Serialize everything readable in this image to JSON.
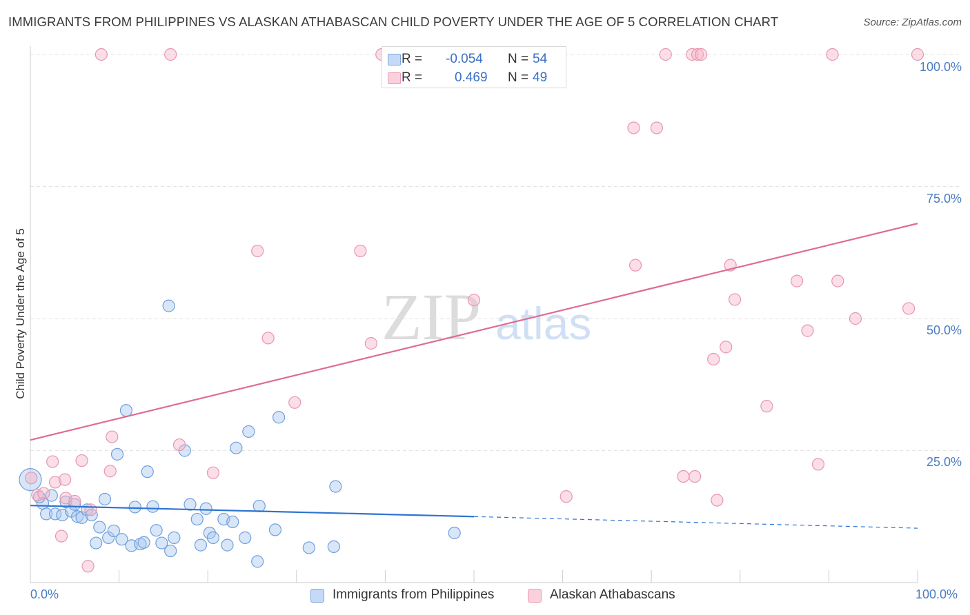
{
  "title": "IMMIGRANTS FROM PHILIPPINES VS ALASKAN ATHABASCAN CHILD POVERTY UNDER THE AGE OF 5 CORRELATION CHART",
  "source": "Source: ZipAtlas.com",
  "watermark": {
    "zip": "ZIP",
    "atlas": "atlas"
  },
  "legend": {
    "rows": [
      {
        "r_label": "R =",
        "r_value": "-0.054",
        "n_label": "N =",
        "n_value": "54",
        "color": "#a8c8f0"
      },
      {
        "r_label": "R =",
        "r_value": "0.469",
        "n_label": "N =",
        "n_value": "49",
        "color": "#f6b6c9"
      }
    ]
  },
  "chart_data": {
    "type": "scatter",
    "title": "IMMIGRANTS FROM PHILIPPINES VS ALASKAN ATHABASCAN CHILD POVERTY UNDER THE AGE OF 5 CORRELATION CHART",
    "xlabel": "",
    "ylabel": "Child Poverty Under the Age of 5",
    "xlim": [
      0,
      100
    ],
    "ylim": [
      0,
      100
    ],
    "x_tick_labels": [
      "0.0%",
      "100.0%"
    ],
    "y_tick_labels": [
      "25.0%",
      "50.0%",
      "75.0%",
      "100.0%"
    ],
    "y_ticks": [
      25,
      50,
      75,
      100
    ],
    "grid": true,
    "legend_position": "bottom-center",
    "series": [
      {
        "name": "Immigrants from Philippines",
        "color": "#a8c8f0",
        "stroke": "#6f9fdc",
        "trend": {
          "x": [
            0,
            50
          ],
          "y": [
            14.6,
            12.5
          ],
          "dashed_to": [
            100,
            10.3
          ],
          "color": "#2e74d0"
        },
        "points": [
          [
            0.0,
            19.5
          ],
          [
            1.4,
            15.0
          ],
          [
            1.8,
            13.0
          ],
          [
            2.4,
            16.5
          ],
          [
            2.8,
            13.0
          ],
          [
            3.6,
            12.8
          ],
          [
            4.0,
            15.3
          ],
          [
            4.6,
            13.5
          ],
          [
            5.0,
            14.8
          ],
          [
            5.3,
            12.5
          ],
          [
            5.8,
            12.3
          ],
          [
            6.4,
            13.8
          ],
          [
            6.9,
            12.8
          ],
          [
            7.4,
            7.5
          ],
          [
            7.8,
            10.5
          ],
          [
            8.4,
            15.8
          ],
          [
            8.8,
            8.5
          ],
          [
            9.4,
            9.8
          ],
          [
            9.8,
            24.3
          ],
          [
            10.3,
            8.2
          ],
          [
            10.8,
            32.6
          ],
          [
            11.4,
            7.0
          ],
          [
            11.8,
            14.3
          ],
          [
            12.4,
            7.3
          ],
          [
            12.8,
            7.6
          ],
          [
            13.2,
            21.0
          ],
          [
            13.8,
            14.4
          ],
          [
            14.2,
            9.9
          ],
          [
            14.8,
            7.5
          ],
          [
            15.6,
            52.4
          ],
          [
            15.8,
            6.0
          ],
          [
            16.2,
            8.5
          ],
          [
            17.4,
            25.0
          ],
          [
            18.0,
            14.8
          ],
          [
            18.8,
            12.0
          ],
          [
            19.2,
            7.1
          ],
          [
            19.8,
            14.0
          ],
          [
            20.2,
            9.4
          ],
          [
            20.6,
            8.5
          ],
          [
            21.8,
            12.0
          ],
          [
            22.2,
            7.1
          ],
          [
            22.8,
            11.5
          ],
          [
            23.2,
            25.5
          ],
          [
            24.2,
            8.5
          ],
          [
            24.6,
            28.6
          ],
          [
            25.6,
            4.0
          ],
          [
            25.8,
            14.5
          ],
          [
            27.6,
            10.0
          ],
          [
            28.0,
            31.3
          ],
          [
            31.4,
            6.6
          ],
          [
            34.2,
            6.8
          ],
          [
            34.4,
            18.2
          ],
          [
            47.8,
            9.4
          ],
          [
            1.0,
            16.2
          ]
        ]
      },
      {
        "name": "Alaskan Athabascans",
        "color": "#f6b6c9",
        "stroke": "#e896b0",
        "trend": {
          "x": [
            0,
            100
          ],
          "y": [
            27.0,
            68.0
          ],
          "color": "#e06a95"
        },
        "points": [
          [
            0.1,
            19.8
          ],
          [
            0.8,
            16.6
          ],
          [
            1.5,
            16.9
          ],
          [
            2.5,
            22.9
          ],
          [
            2.8,
            19.0
          ],
          [
            3.5,
            8.8
          ],
          [
            3.9,
            19.5
          ],
          [
            4.0,
            16.0
          ],
          [
            5.0,
            15.4
          ],
          [
            5.8,
            23.1
          ],
          [
            6.5,
            3.1
          ],
          [
            6.8,
            13.8
          ],
          [
            8.0,
            100.0
          ],
          [
            9.0,
            21.1
          ],
          [
            9.2,
            27.6
          ],
          [
            15.8,
            100.0
          ],
          [
            16.8,
            26.1
          ],
          [
            20.6,
            20.8
          ],
          [
            25.6,
            62.8
          ],
          [
            26.8,
            46.3
          ],
          [
            29.8,
            34.1
          ],
          [
            37.2,
            62.8
          ],
          [
            38.4,
            45.3
          ],
          [
            39.6,
            100.0
          ],
          [
            50.0,
            53.5
          ],
          [
            60.4,
            16.3
          ],
          [
            68.0,
            86.1
          ],
          [
            68.2,
            60.1
          ],
          [
            70.6,
            86.1
          ],
          [
            71.6,
            100.0
          ],
          [
            73.6,
            20.1
          ],
          [
            74.6,
            100.0
          ],
          [
            74.9,
            20.1
          ],
          [
            75.2,
            100.0
          ],
          [
            75.6,
            100.0
          ],
          [
            77.0,
            42.3
          ],
          [
            77.4,
            15.6
          ],
          [
            78.4,
            44.6
          ],
          [
            78.9,
            60.1
          ],
          [
            79.4,
            53.6
          ],
          [
            83.0,
            33.4
          ],
          [
            86.4,
            57.1
          ],
          [
            87.6,
            47.7
          ],
          [
            88.8,
            22.4
          ],
          [
            90.4,
            100.0
          ],
          [
            91.0,
            57.1
          ],
          [
            93.0,
            50.0
          ],
          [
            99.0,
            51.9
          ],
          [
            100.0,
            100.0
          ]
        ]
      }
    ]
  }
}
